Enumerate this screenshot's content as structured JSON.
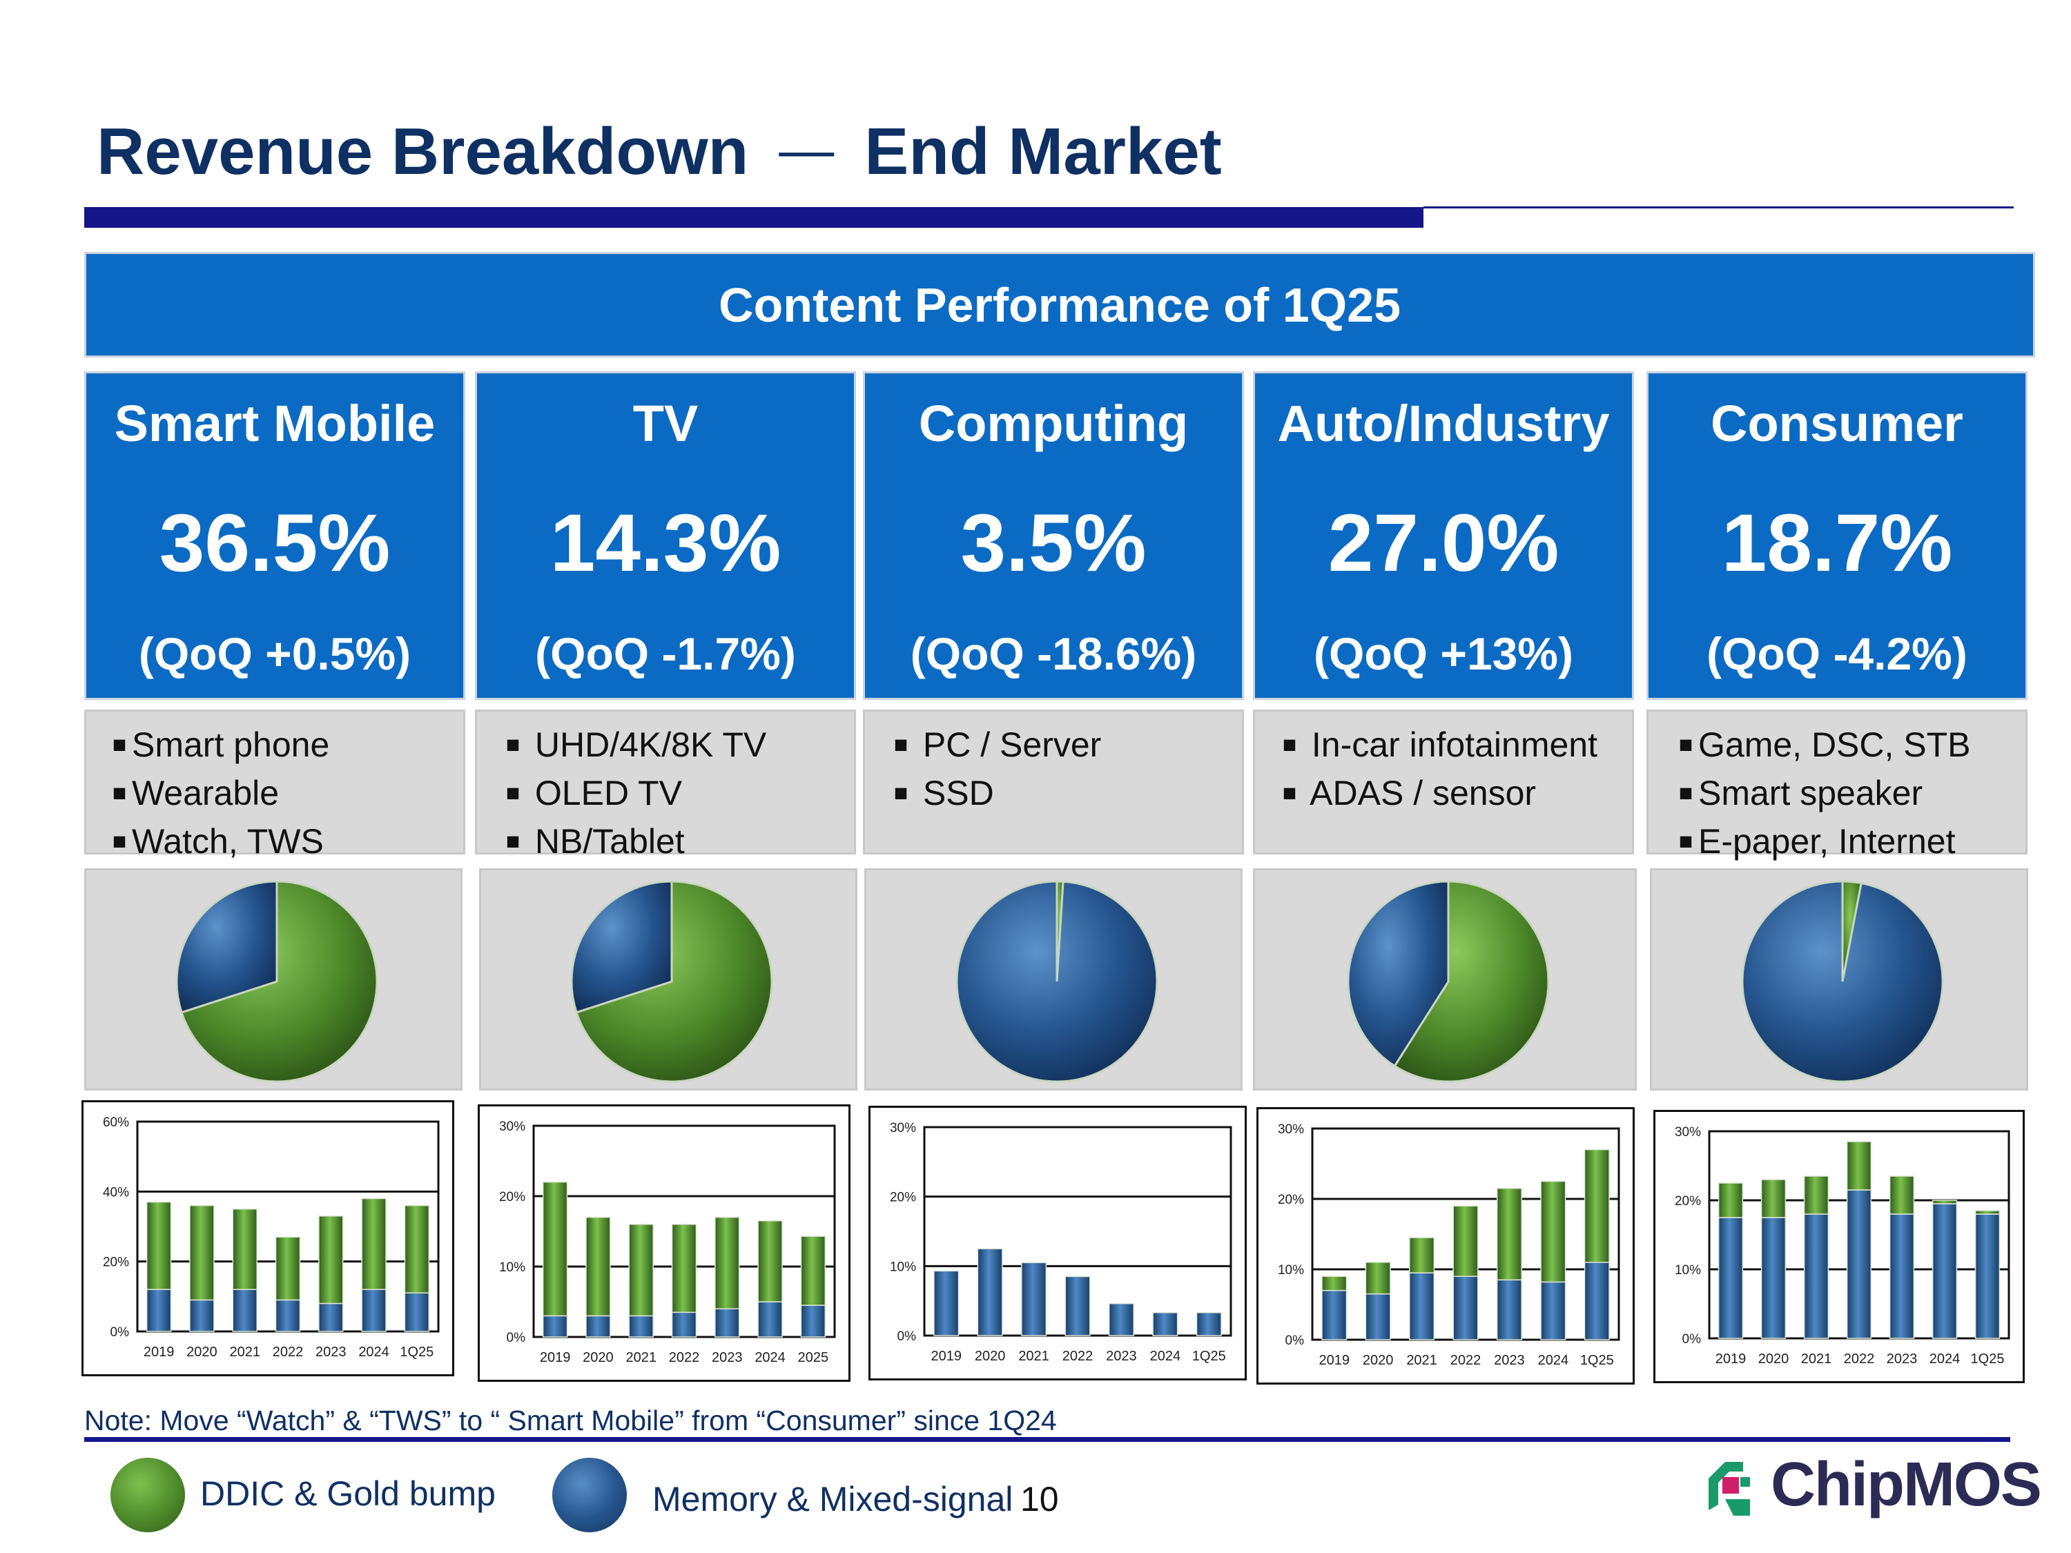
{
  "header": {
    "title_left": "Revenue Breakdown",
    "title_dash": "—",
    "title_right": "End Market"
  },
  "banner": {
    "text": "Content Performance of 1Q25"
  },
  "colors": {
    "brand_navy": "#15168a",
    "title_text": "#0f3063",
    "card_blue": "#0b6bc4",
    "ddic_green": "#4e8a2a",
    "memory_blue": "#24538c",
    "panel_gray": "#d9d9d9"
  },
  "segments": [
    {
      "name": "Smart Mobile",
      "share": "36.5%",
      "qoq": "(QoQ +0.5%)",
      "apps": [
        "Smart phone",
        "Wearable",
        "Watch, TWS"
      ]
    },
    {
      "name": "TV",
      "share": "14.3%",
      "qoq": "(QoQ -1.7%)",
      "apps": [
        "UHD/4K/8K TV",
        "OLED TV",
        "NB/Tablet"
      ]
    },
    {
      "name": "Computing",
      "share": "3.5%",
      "qoq": "(QoQ  -18.6%)",
      "apps": [
        "PC / Server",
        "SSD"
      ]
    },
    {
      "name": "Auto/Industry",
      "share": "27.0%",
      "qoq": "(QoQ +13%)",
      "apps": [
        "In-car infotainment",
        "ADAS / sensor"
      ]
    },
    {
      "name": "Consumer",
      "share": "18.7%",
      "qoq": "(QoQ  -4.2%)",
      "apps": [
        "Game, DSC, STB",
        "Smart speaker",
        "E-paper, Internet"
      ]
    }
  ],
  "chart_data": [
    {
      "type": "pie",
      "segment": "Smart Mobile",
      "labels": [
        "DDIC & Gold bump",
        "Memory & Mixed-signal"
      ],
      "values": [
        70,
        30
      ]
    },
    {
      "type": "pie",
      "segment": "TV",
      "labels": [
        "DDIC & Gold bump",
        "Memory & Mixed-signal"
      ],
      "values": [
        70,
        30
      ]
    },
    {
      "type": "pie",
      "segment": "Computing",
      "labels": [
        "DDIC & Gold bump",
        "Memory & Mixed-signal"
      ],
      "values": [
        1,
        99
      ]
    },
    {
      "type": "pie",
      "segment": "Auto/Industry",
      "labels": [
        "DDIC & Gold bump",
        "Memory & Mixed-signal"
      ],
      "values": [
        59,
        41
      ]
    },
    {
      "type": "pie",
      "segment": "Consumer",
      "labels": [
        "DDIC & Gold bump",
        "Memory & Mixed-signal"
      ],
      "values": [
        3,
        97
      ]
    },
    {
      "type": "bar",
      "stacked": true,
      "segment": "Smart Mobile",
      "categories": [
        "2019",
        "2020",
        "2021",
        "2022",
        "2023",
        "2024",
        "1Q25"
      ],
      "yticks": [
        "0%",
        "20%",
        "40%",
        "60%"
      ],
      "ylim": [
        0,
        60
      ],
      "series": [
        {
          "name": "Memory & Mixed-signal",
          "values": [
            12,
            9,
            12,
            9,
            8,
            12,
            11
          ]
        },
        {
          "name": "DDIC & Gold bump",
          "values": [
            25,
            27,
            23,
            18,
            25,
            26,
            25
          ]
        }
      ]
    },
    {
      "type": "bar",
      "stacked": true,
      "segment": "TV",
      "categories": [
        "2019",
        "2020",
        "2021",
        "2022",
        "2023",
        "2024",
        "2025"
      ],
      "yticks": [
        "0%",
        "10%",
        "20%",
        "30%"
      ],
      "ylim": [
        0,
        30
      ],
      "series": [
        {
          "name": "Memory & Mixed-signal",
          "values": [
            3,
            3,
            3,
            3.5,
            4,
            5,
            4.5
          ]
        },
        {
          "name": "DDIC & Gold bump",
          "values": [
            19,
            14,
            13,
            12.5,
            13,
            11.5,
            9.8
          ]
        }
      ]
    },
    {
      "type": "bar",
      "stacked": true,
      "segment": "Computing",
      "categories": [
        "2019",
        "2020",
        "2021",
        "2022",
        "2023",
        "2024",
        "1Q25"
      ],
      "yticks": [
        "0%",
        "10%",
        "20%",
        "30%"
      ],
      "ylim": [
        0,
        30
      ],
      "series": [
        {
          "name": "Memory & Mixed-signal",
          "values": [
            9.3,
            12.5,
            10.5,
            8.5,
            4.6,
            3.3,
            3.3
          ]
        },
        {
          "name": "DDIC & Gold bump",
          "values": [
            0,
            0,
            0,
            0,
            0,
            0,
            0
          ]
        }
      ]
    },
    {
      "type": "bar",
      "stacked": true,
      "segment": "Auto/Industry",
      "categories": [
        "2019",
        "2020",
        "2021",
        "2022",
        "2023",
        "2024",
        "1Q25"
      ],
      "yticks": [
        "0%",
        "10%",
        "20%",
        "30%"
      ],
      "ylim": [
        0,
        30
      ],
      "series": [
        {
          "name": "Memory & Mixed-signal",
          "values": [
            7,
            6.5,
            9.5,
            9,
            8.5,
            8.2,
            11
          ]
        },
        {
          "name": "DDIC & Gold bump",
          "values": [
            2,
            4.5,
            5,
            10,
            13,
            14.3,
            16
          ]
        }
      ]
    },
    {
      "type": "bar",
      "stacked": true,
      "segment": "Consumer",
      "categories": [
        "2019",
        "2020",
        "2021",
        "2022",
        "2023",
        "2024",
        "1Q25"
      ],
      "yticks": [
        "0%",
        "10%",
        "20%",
        "30%"
      ],
      "ylim": [
        0,
        30
      ],
      "series": [
        {
          "name": "Memory & Mixed-signal",
          "values": [
            17.5,
            17.5,
            18,
            21.5,
            18,
            19.5,
            18
          ]
        },
        {
          "name": "DDIC & Gold bump",
          "values": [
            5,
            5.5,
            5.5,
            7,
            5.5,
            0.5,
            0.5
          ]
        }
      ]
    }
  ],
  "footer": {
    "note": "Note: Move “Watch” & “TWS” to “ Smart Mobile” from “Consumer” since 1Q24",
    "legend_ddic": "DDIC & Gold bump",
    "legend_memory": "Memory & Mixed-signal",
    "page_number": "10",
    "logo_text": "ChipMOS"
  }
}
